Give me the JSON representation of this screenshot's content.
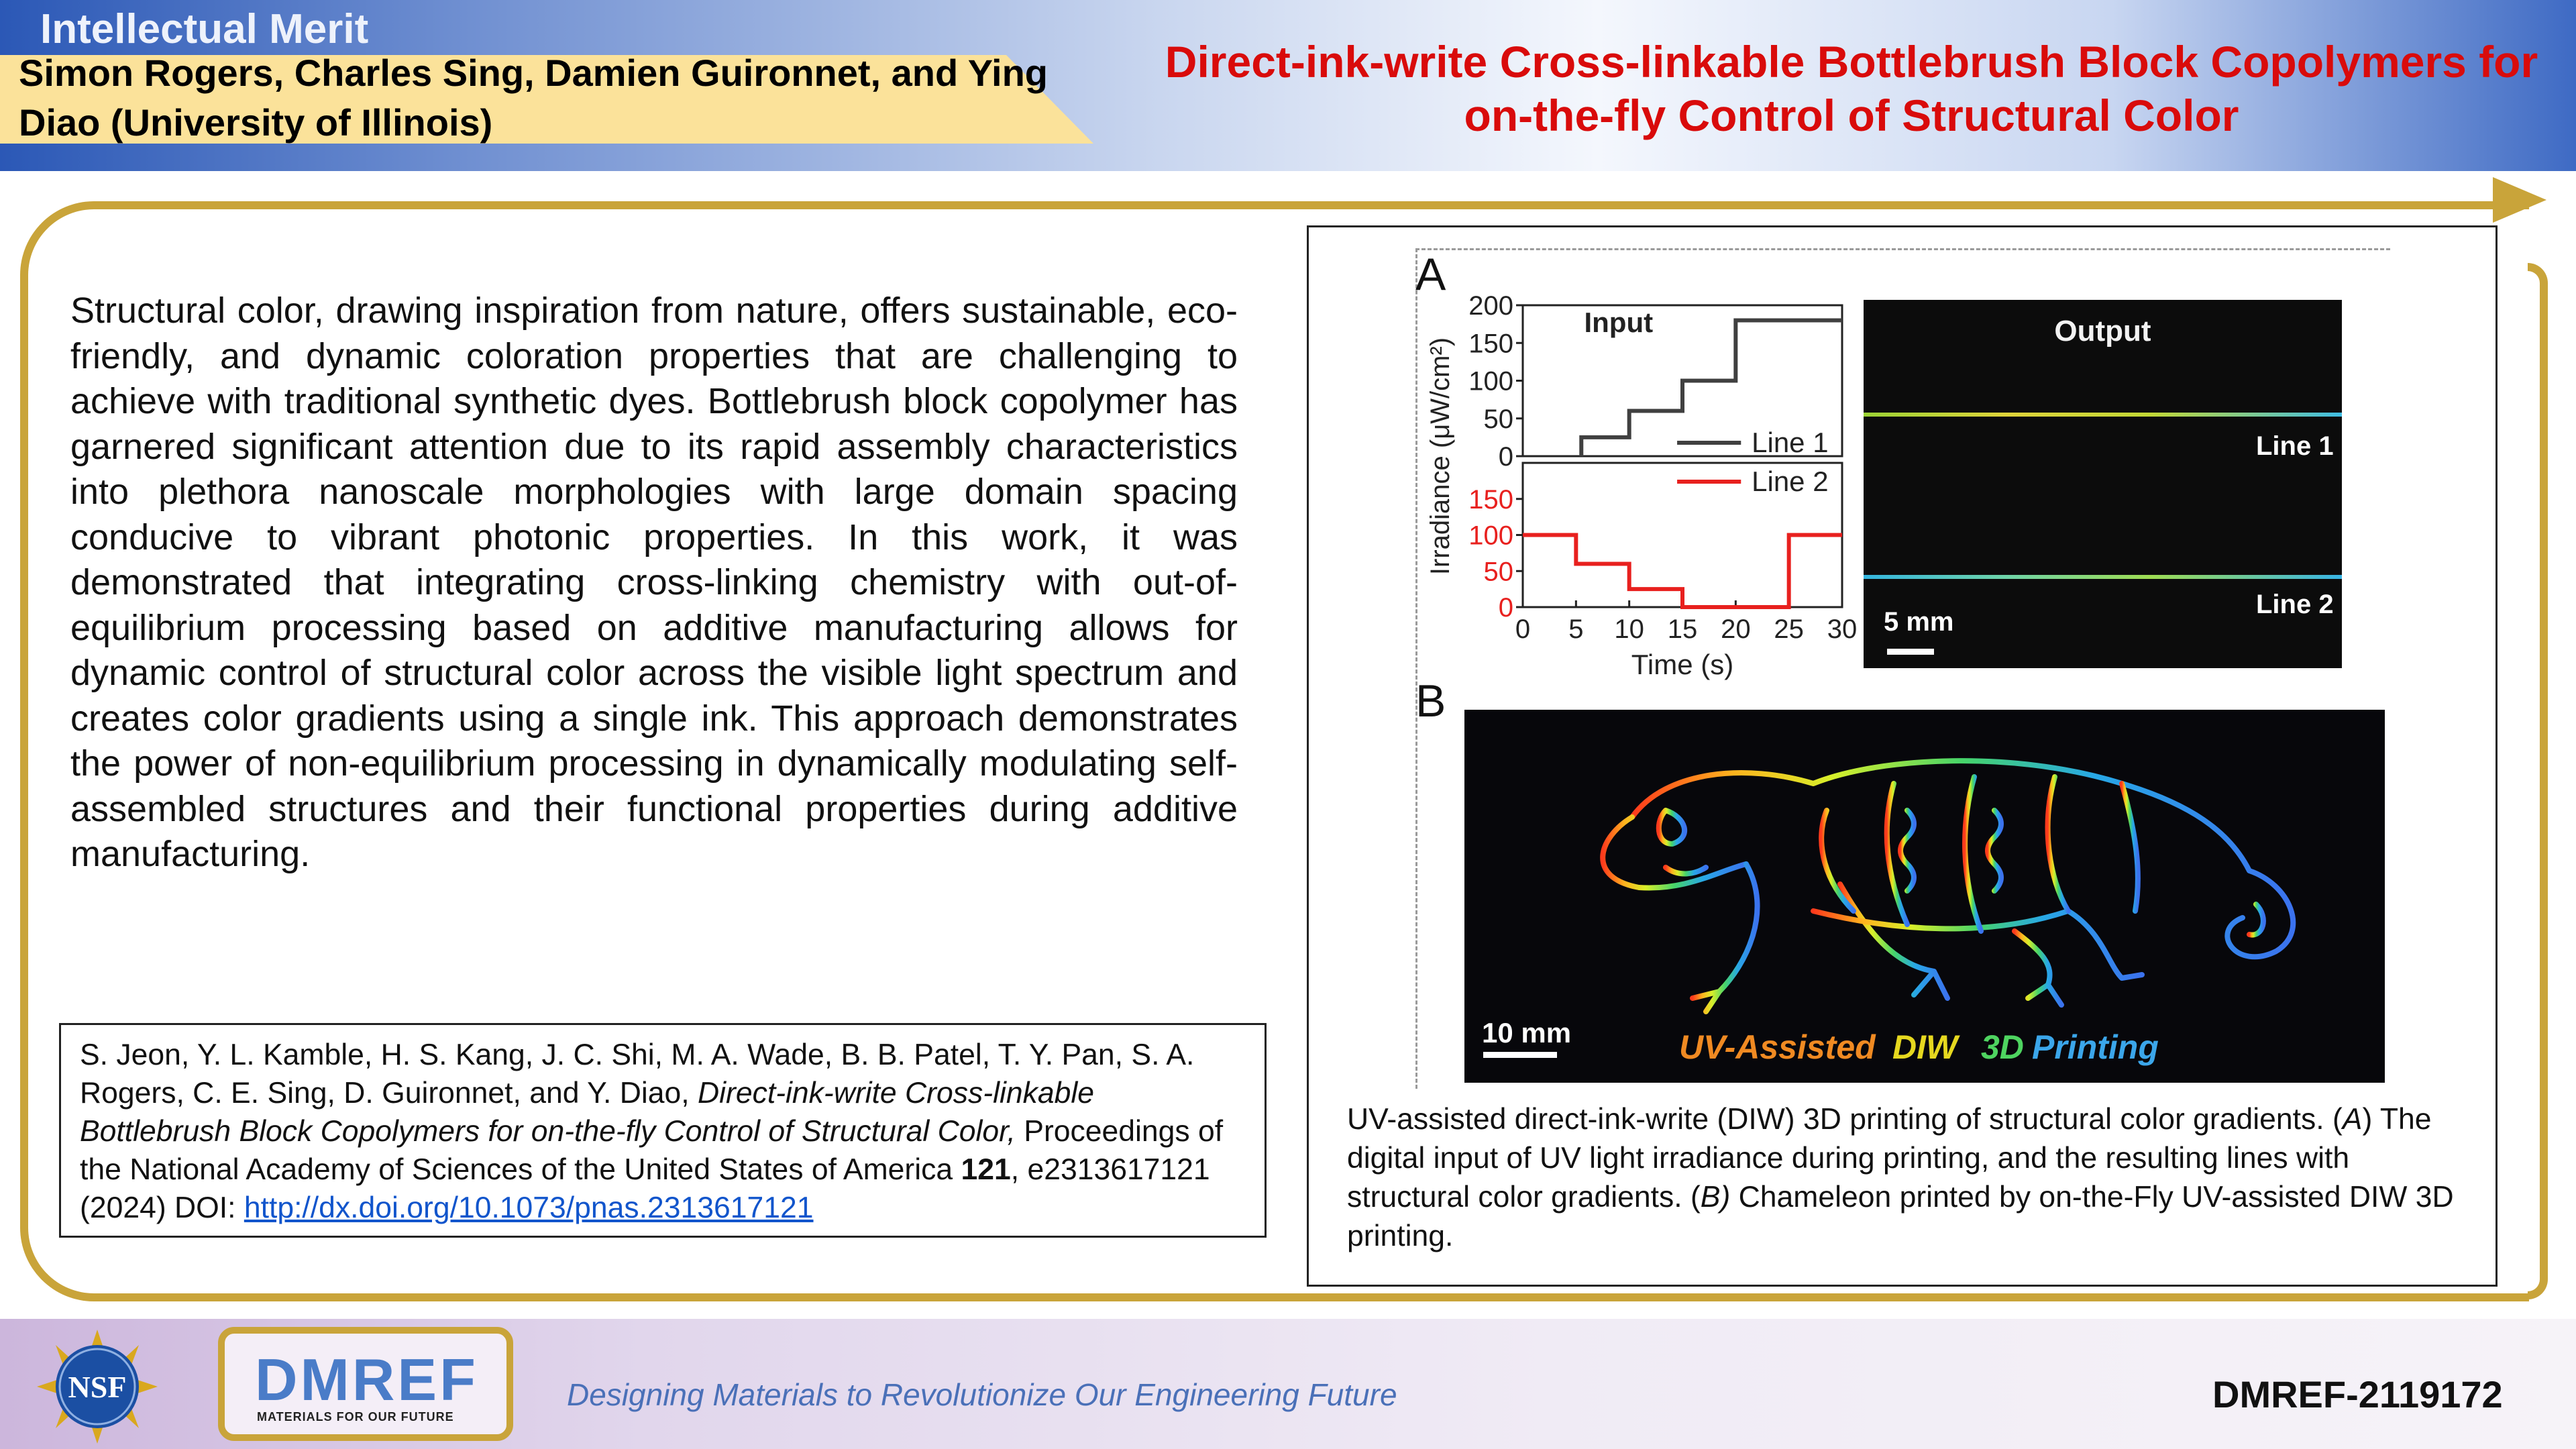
{
  "header": {
    "section_label": "Intellectual Merit",
    "authors": "Simon Rogers, Charles Sing, Damien Guironnet, and Ying Diao (University of Illinois)",
    "title": "Direct-ink-write Cross-linkable Bottlebrush Block Copolymers for on-the-fly Control of Structural Color"
  },
  "body": {
    "paragraph": "Structural color, drawing inspiration from nature, offers sustainable, eco-friendly, and dynamic coloration properties that are challenging to achieve with traditional synthetic dyes. Bottlebrush block copolymer has garnered significant attention due to its rapid assembly characteristics into plethora nanoscale morphologies with large domain spacing conducive to vibrant photonic properties. In this work, it was demonstrated that integrating cross-linking chemistry with out-of-equilibrium processing based on additive manufacturing allows for dynamic control of structural color across the visible light spectrum and creates color gradients using a single ink. This approach demonstrates the power of non-equilibrium processing in dynamically modulating self-assembled structures and their functional properties during additive manufacturing."
  },
  "citation": {
    "authors": "S. Jeon, Y. L. Kamble, H. S. Kang, J. C. Shi, M. A. Wade, B. B. Patel, T. Y. Pan, S. A. Rogers, C. E. Sing, D. Guironnet, and Y. Diao, ",
    "paper_title": "Direct-ink-write Cross-linkable Bottlebrush Block Copolymers for on-the-fly Control of Structural Color,",
    "journal": " Proceedings of the National Academy of Sciences of the United States of America ",
    "volume": "121",
    "pages_year": ", e2313617121 (2024) DOI: ",
    "doi_link": "http://dx.doi.org/10.1073/pnas.2313617121"
  },
  "figure": {
    "panel_a_label": "A",
    "panel_b_label": "B",
    "output_title": "Output",
    "output_line1_label": "Line 1",
    "output_line2_label": "Line 2",
    "output_scale": "5 mm",
    "chameleon_scale": "10 mm",
    "chameleon_caption_uv": "UV-Assisted",
    "chameleon_caption_diw": "DIW",
    "chameleon_caption_3d": "3D",
    "chameleon_caption_printing": "Printing",
    "caption_p1": "UV-assisted direct-ink-write (DIW) 3D printing of structural color gradients. (",
    "caption_a": "A",
    "caption_p2": ") The digital input of UV light irradiance during printing, and the resulting lines with structural color gradients. (",
    "caption_b": "B)",
    "caption_p3": " Chameleon printed by on-the-Fly UV-assisted DIW 3D printing."
  },
  "chart_data": {
    "type": "line",
    "title": "Input",
    "xlabel": "Time (s)",
    "ylabel": "Irradiance (μW/cm²)",
    "xlim": [
      0,
      30
    ],
    "xticks": [
      "0",
      "5",
      "10",
      "15",
      "20",
      "25",
      "30"
    ],
    "top_yticks": [
      "0",
      "50",
      "100",
      "150",
      "200"
    ],
    "bottom_yticks": [
      "0",
      "50",
      "100",
      "150"
    ],
    "series": [
      {
        "name": "Line 1",
        "color": "#404040",
        "x": [
          5.5,
          5.5,
          10,
          10,
          15,
          15,
          20,
          20,
          25,
          25,
          30
        ],
        "y": [
          0,
          25,
          25,
          60,
          60,
          100,
          100,
          180,
          180,
          180,
          180
        ]
      },
      {
        "name": "Line 2",
        "color": "#e8201e",
        "x": [
          0,
          5,
          5,
          10,
          10,
          15,
          15,
          20,
          25,
          25,
          30
        ],
        "y": [
          100,
          100,
          60,
          60,
          25,
          25,
          0,
          0,
          0,
          100,
          100
        ]
      }
    ]
  },
  "footer": {
    "nsf_logo_text": "NSF",
    "dmref_logo_text": "DMREF",
    "dmref_logo_sub": "MATERIALS FOR OUR FUTURE",
    "tagline": "Designing Materials to Revolutionize Our Engineering Future",
    "award_id": "DMREF-2119172"
  },
  "colors": {
    "title_red": "#d90b0b",
    "gold_frame": "#c9a43a",
    "author_band": "#fbe29a",
    "tagline_blue": "#4a70b8"
  }
}
